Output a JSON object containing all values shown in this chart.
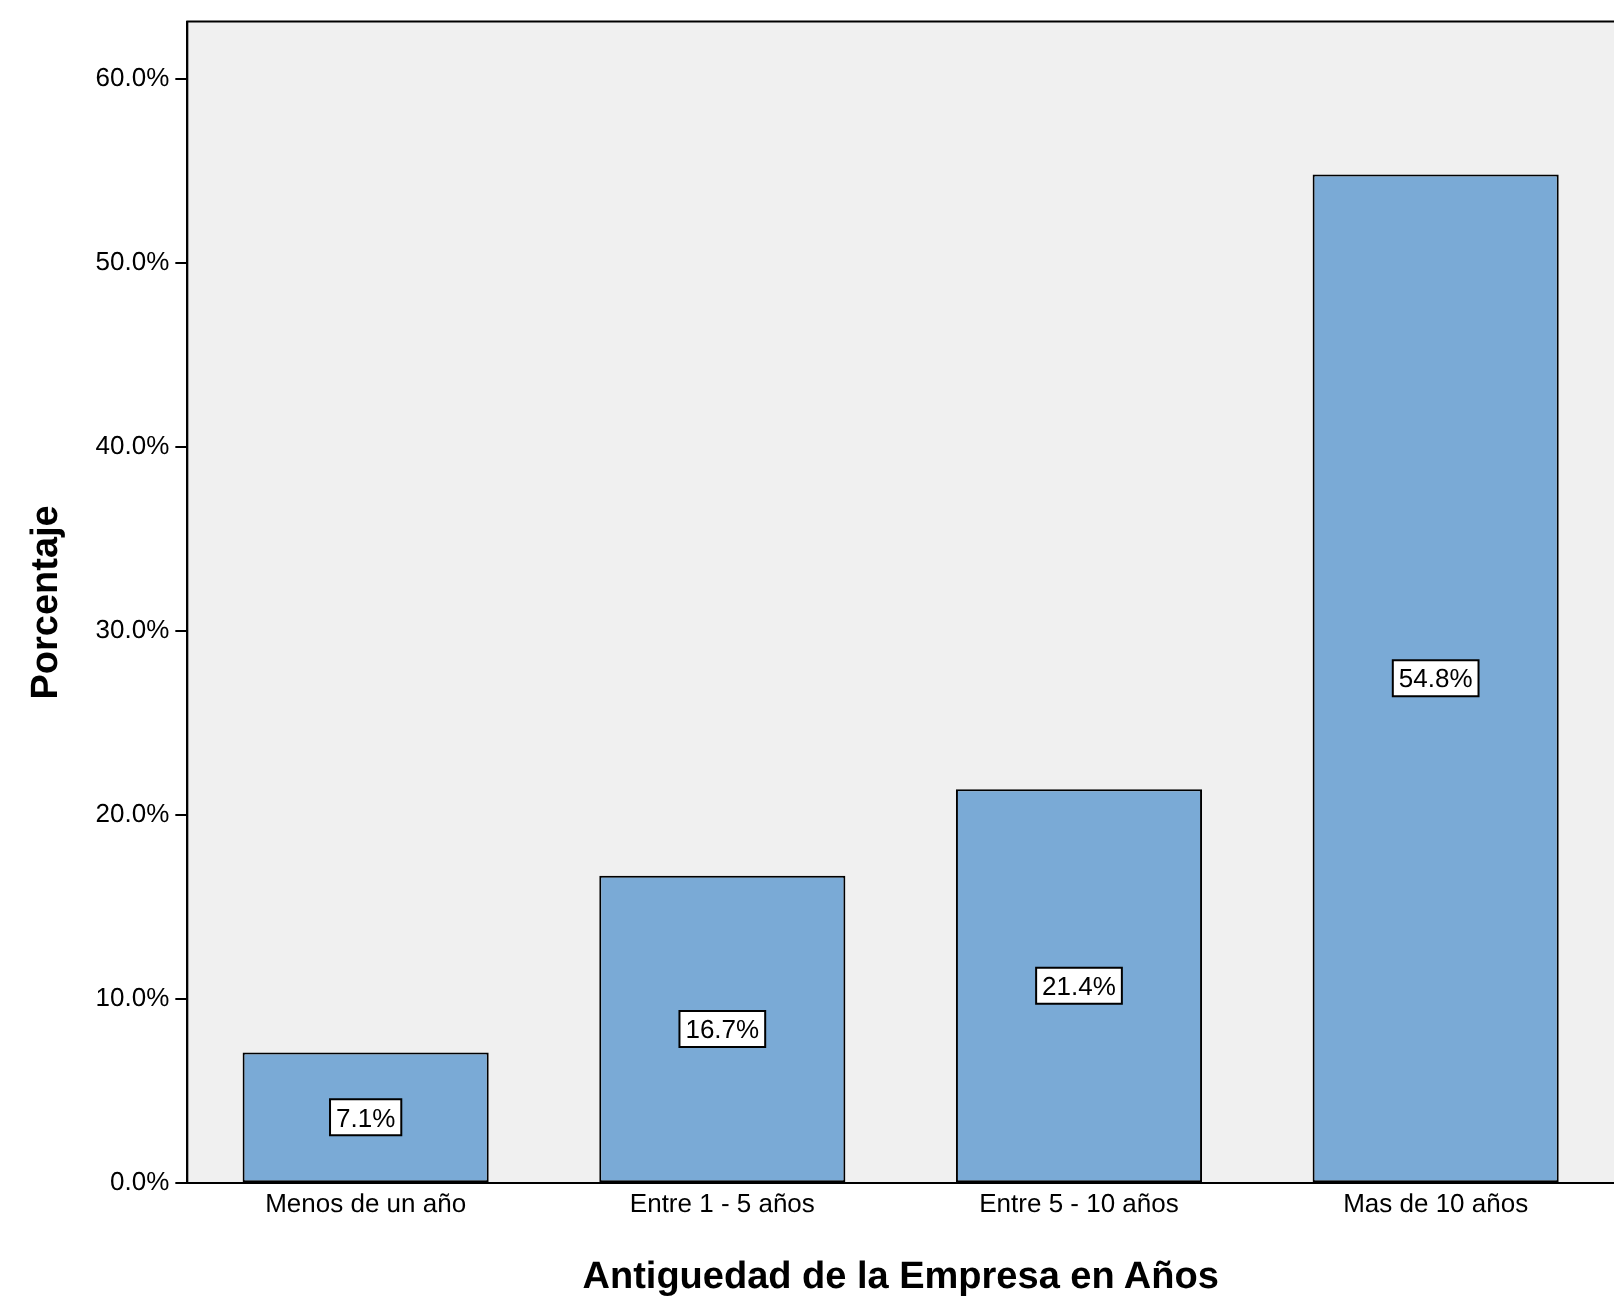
{
  "chart_data": {
    "type": "bar",
    "xlabel": "Antiguedad de la Empresa en Años",
    "ylabel": "Porcentaje",
    "categories": [
      "Menos de un año",
      "Entre 1 - 5 años",
      "Entre 5 - 10 años",
      "Mas de 10 años"
    ],
    "values": [
      7.1,
      16.7,
      21.4,
      54.8
    ],
    "color": "#7aaad6",
    "value_labels": [
      "7.1%",
      "16.7%",
      "21.4%",
      "54.8%"
    ],
    "ylim": [
      0,
      63.1
    ],
    "yticks": [
      {
        "value": 0,
        "label": "0.0%"
      },
      {
        "value": 10,
        "label": "10.0%"
      },
      {
        "value": 20,
        "label": "20.0%"
      },
      {
        "value": 30,
        "label": "30.0%"
      },
      {
        "value": 40,
        "label": "40.0%"
      },
      {
        "value": 50,
        "label": "50.0%"
      },
      {
        "value": 60,
        "label": "60.0%"
      }
    ],
    "grid": false,
    "legend": false
  }
}
